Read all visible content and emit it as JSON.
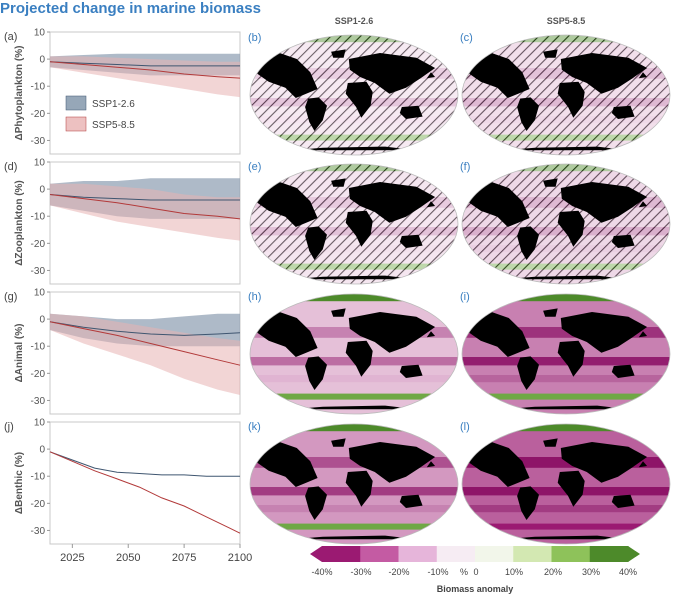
{
  "title": "Projected change in marine biomass",
  "scenarios": [
    "SSP1-2.6",
    "SSP5-8.5"
  ],
  "colors": {
    "ssp126_line": "#3f5670",
    "ssp126_band": "#8b9db0",
    "ssp585_line": "#b23a3a",
    "ssp585_band": "#e8b2b2",
    "land": "#000000",
    "map_ocean": "#f4e4f0"
  },
  "colorbar": {
    "label": "Biomass anomaly",
    "tick_labels": [
      "-40%",
      "-30%",
      "-20%",
      "-10%",
      "%",
      "0",
      "10%",
      "20%",
      "30%",
      "40%"
    ],
    "colors": [
      "#9b1a72",
      "#c45ba3",
      "#e6b5da",
      "#f6ecf3",
      "#f2f6ea",
      "#d3e8b2",
      "#8ec25a",
      "#4d8a2a"
    ]
  },
  "map_columns": [
    "SSP1-2.6",
    "SSP5-8.5"
  ],
  "maps": [
    {
      "label": "(b)",
      "scenario": "SSP1-2.6",
      "variable": "phytoplankton",
      "hatched": true,
      "intensity": 0.2
    },
    {
      "label": "(c)",
      "scenario": "SSP5-8.5",
      "variable": "phytoplankton",
      "hatched": true,
      "intensity": 0.35
    },
    {
      "label": "(e)",
      "scenario": "SSP1-2.6",
      "variable": "zooplankton",
      "hatched": true,
      "intensity": 0.25
    },
    {
      "label": "(f)",
      "scenario": "SSP5-8.5",
      "variable": "zooplankton",
      "hatched": true,
      "intensity": 0.45
    },
    {
      "label": "(h)",
      "scenario": "SSP1-2.6",
      "variable": "animal",
      "hatched": false,
      "intensity": 0.3
    },
    {
      "label": "(i)",
      "scenario": "SSP5-8.5",
      "variable": "animal",
      "hatched": false,
      "intensity": 0.7
    },
    {
      "label": "(k)",
      "scenario": "SSP1-2.6",
      "variable": "benthic",
      "hatched": false,
      "intensity": 0.55
    },
    {
      "label": "(l)",
      "scenario": "SSP5-8.5",
      "variable": "benthic",
      "hatched": false,
      "intensity": 0.9
    }
  ],
  "chart_data": [
    {
      "type": "line",
      "label": "(a)",
      "ylabel": "ΔPhytoplankton (%)",
      "ylim": [
        -35,
        10
      ],
      "yticks": [
        10,
        0,
        -10,
        -20,
        -30
      ],
      "xlim": [
        2015,
        2100
      ],
      "legend": {
        "placement": "middle-left",
        "entries": [
          "SSP1-2.6",
          "SSP5-8.5"
        ]
      },
      "series": [
        {
          "name": "SSP1-2.6",
          "x": [
            2015,
            2030,
            2045,
            2060,
            2075,
            2090,
            2100
          ],
          "y": [
            -1,
            -1.5,
            -2,
            -2.5,
            -2.5,
            -2.5,
            -2.5
          ],
          "lower": [
            -3,
            -4,
            -5,
            -6,
            -6,
            -6,
            -6
          ],
          "upper": [
            1,
            1.5,
            2,
            2,
            2,
            2,
            2
          ]
        },
        {
          "name": "SSP5-8.5",
          "x": [
            2015,
            2030,
            2045,
            2060,
            2075,
            2090,
            2100
          ],
          "y": [
            -1,
            -2,
            -3,
            -4,
            -5.5,
            -6.5,
            -7
          ],
          "lower": [
            -3,
            -5,
            -7,
            -9,
            -11,
            -13,
            -14
          ],
          "upper": [
            1,
            1,
            0.5,
            0,
            -0.5,
            -1,
            -1
          ]
        }
      ]
    },
    {
      "type": "line",
      "label": "(d)",
      "ylabel": "ΔZooplankton (%)",
      "ylim": [
        -35,
        10
      ],
      "yticks": [
        10,
        0,
        -10,
        -20,
        -30
      ],
      "xlim": [
        2015,
        2100
      ],
      "series": [
        {
          "name": "SSP1-2.6",
          "x": [
            2015,
            2030,
            2045,
            2060,
            2075,
            2090,
            2100
          ],
          "y": [
            -2,
            -3,
            -3.5,
            -4,
            -4,
            -4,
            -4
          ],
          "lower": [
            -6,
            -8,
            -10,
            -11,
            -11,
            -11,
            -11
          ],
          "upper": [
            2,
            3,
            3,
            4,
            4,
            4,
            4
          ]
        },
        {
          "name": "SSP5-8.5",
          "x": [
            2015,
            2030,
            2045,
            2060,
            2075,
            2090,
            2100
          ],
          "y": [
            -2,
            -3.5,
            -5,
            -7,
            -9,
            -10,
            -11
          ],
          "lower": [
            -6,
            -9,
            -12,
            -14,
            -16,
            -18,
            -19
          ],
          "upper": [
            2,
            2,
            1,
            0,
            -2,
            -3,
            -3
          ]
        }
      ]
    },
    {
      "type": "line",
      "label": "(g)",
      "ylabel": "ΔAnimal (%)",
      "ylim": [
        -35,
        10
      ],
      "yticks": [
        10,
        0,
        -10,
        -20,
        -30
      ],
      "xlim": [
        2015,
        2100
      ],
      "series": [
        {
          "name": "SSP1-2.6",
          "x": [
            2015,
            2030,
            2045,
            2060,
            2075,
            2090,
            2100
          ],
          "y": [
            -1,
            -3,
            -4.5,
            -5.5,
            -6,
            -5.5,
            -5
          ],
          "lower": [
            -4,
            -7,
            -9,
            -10,
            -10,
            -10,
            -10
          ],
          "upper": [
            2,
            1,
            0,
            0,
            1,
            2,
            2
          ]
        },
        {
          "name": "SSP5-8.5",
          "x": [
            2015,
            2030,
            2045,
            2060,
            2075,
            2090,
            2100
          ],
          "y": [
            -1,
            -3.5,
            -6,
            -9,
            -12,
            -15,
            -17
          ],
          "lower": [
            -4,
            -9,
            -13,
            -17,
            -22,
            -26,
            -28
          ],
          "upper": [
            2,
            1,
            -1,
            -3,
            -5,
            -7,
            -8
          ]
        }
      ]
    },
    {
      "type": "line",
      "label": "(j)",
      "ylabel": "ΔBenthic (%)",
      "ylim": [
        -35,
        10
      ],
      "yticks": [
        10,
        0,
        -10,
        -20,
        -30
      ],
      "xlim": [
        2015,
        2100
      ],
      "xticks": [
        2025,
        2050,
        2075,
        2100
      ],
      "series": [
        {
          "name": "SSP1-2.6",
          "x": [
            2015,
            2025,
            2035,
            2045,
            2055,
            2065,
            2075,
            2085,
            2095,
            2100
          ],
          "y": [
            -1,
            -4,
            -7,
            -8.5,
            -9,
            -9.5,
            -9.5,
            -10,
            -10,
            -10
          ]
        },
        {
          "name": "SSP5-8.5",
          "x": [
            2015,
            2025,
            2035,
            2045,
            2055,
            2065,
            2075,
            2085,
            2095,
            2100
          ],
          "y": [
            -1,
            -4.5,
            -8,
            -11,
            -14,
            -18,
            -21,
            -25,
            -29,
            -31
          ]
        }
      ]
    }
  ]
}
